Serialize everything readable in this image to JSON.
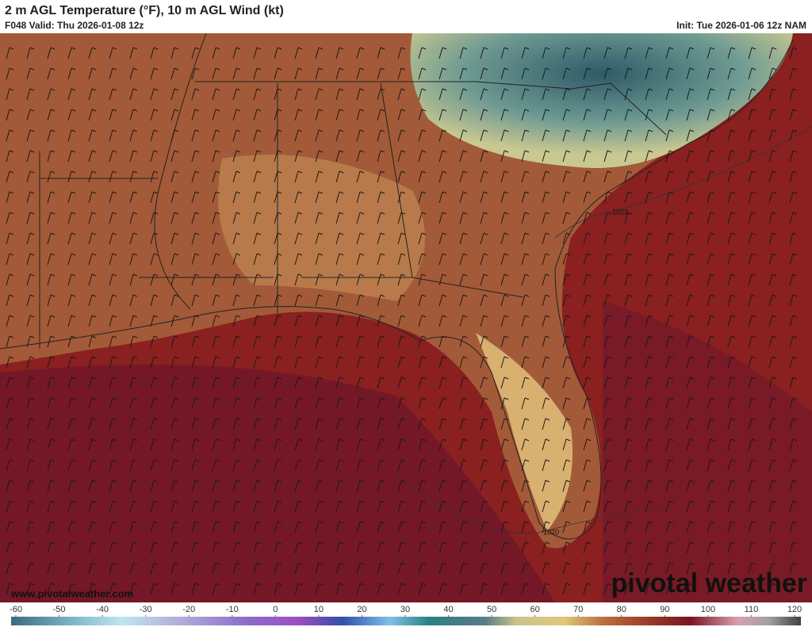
{
  "header": {
    "title": "2 m AGL Temperature (°F), 10 m AGL Wind (kt)",
    "valid": "F048 Valid: Thu 2026-01-08 12z",
    "init": "Init: Tue 2026-01-06 12z NAM"
  },
  "map": {
    "isobar_labels": [
      "1022",
      "1020"
    ],
    "website": "www.pivotalweather.com",
    "logo": "pivotal weather"
  },
  "colorbar": {
    "ticks": [
      -60,
      -50,
      -40,
      -30,
      -20,
      -10,
      0,
      10,
      20,
      30,
      40,
      50,
      60,
      70,
      80,
      90,
      100,
      110,
      120
    ]
  }
}
